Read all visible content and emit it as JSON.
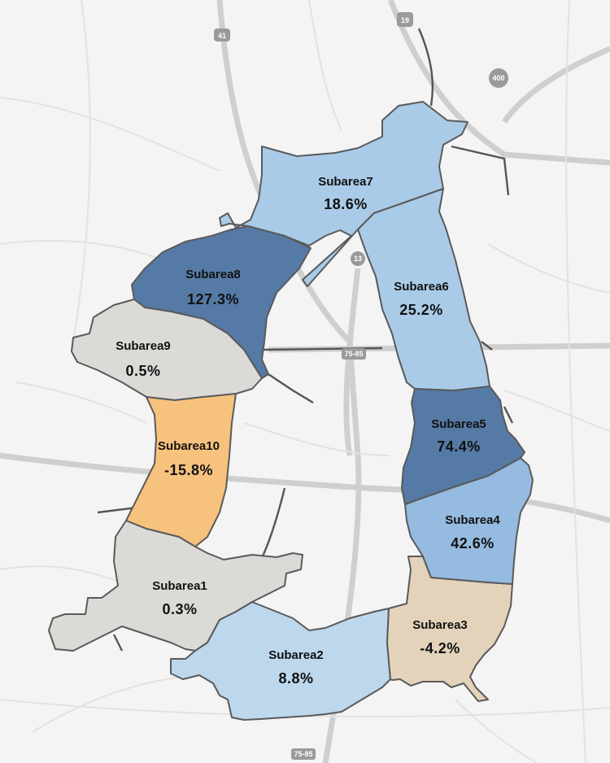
{
  "colors": {
    "background": "#f4f4f4",
    "very_light_blue": "#bdd7ec",
    "light_blue": "#a9cbe8",
    "medium_blue": "#95bbe0",
    "dark_blue": "#557aa6",
    "light_gray": "#dcdad7",
    "tan": "#e4d3bb",
    "orange": "#f7c27e"
  },
  "subareas": [
    {
      "name": "Subarea1",
      "value": "0.3%",
      "color": "light_gray"
    },
    {
      "name": "Subarea2",
      "value": "8.8%",
      "color": "very_light_blue"
    },
    {
      "name": "Subarea3",
      "value": "-4.2%",
      "color": "tan"
    },
    {
      "name": "Subarea4",
      "value": "42.6%",
      "color": "medium_blue"
    },
    {
      "name": "Subarea5",
      "value": "74.4%",
      "color": "dark_blue"
    },
    {
      "name": "Subarea6",
      "value": "25.2%",
      "color": "light_blue"
    },
    {
      "name": "Subarea7",
      "value": "18.6%",
      "color": "light_blue"
    },
    {
      "name": "Subarea8",
      "value": "127.3%",
      "color": "dark_blue"
    },
    {
      "name": "Subarea9",
      "value": "0.5%",
      "color": "light_gray"
    },
    {
      "name": "Subarea10",
      "value": "-15.8%",
      "color": "orange"
    }
  ],
  "road_shields": [
    "41",
    "19",
    "400",
    "13",
    "75-85",
    "75-85"
  ]
}
